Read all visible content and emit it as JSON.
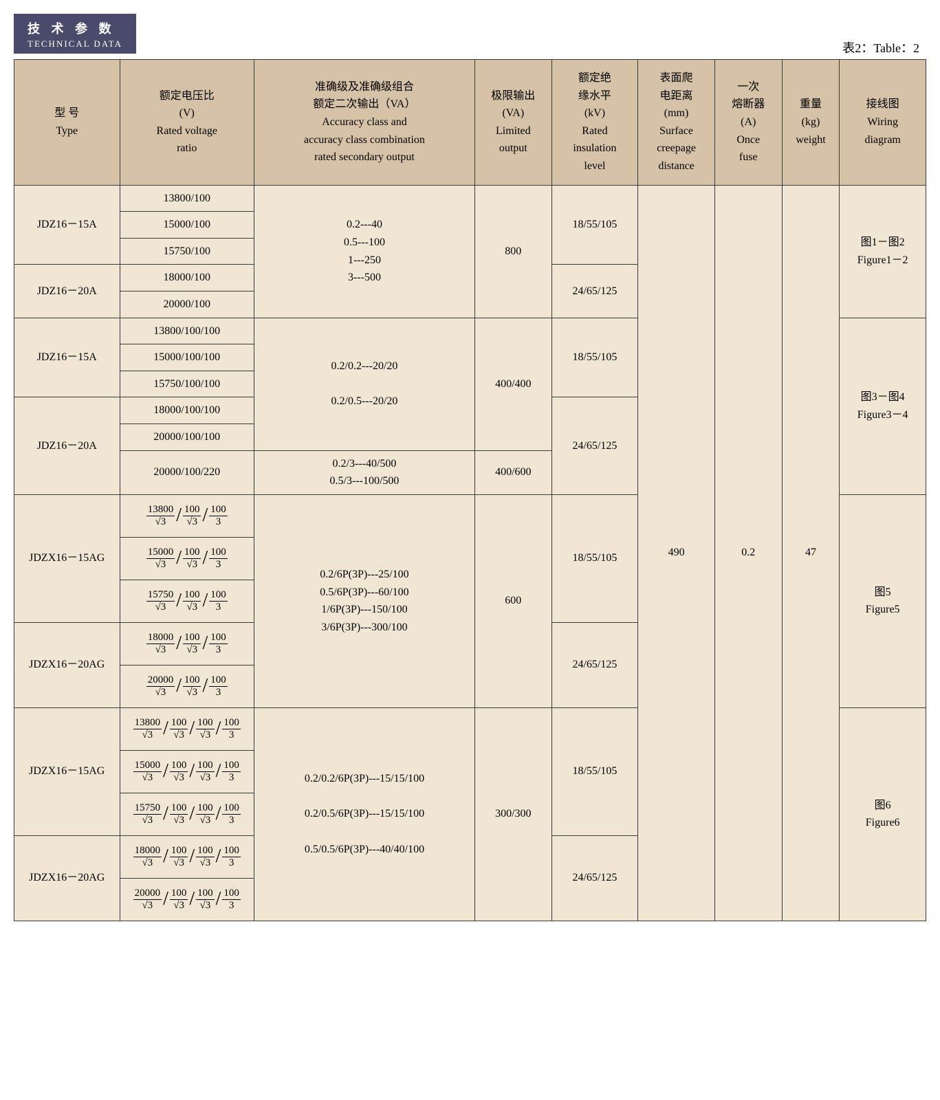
{
  "colors": {
    "badge_bg": "#4a4a6a",
    "badge_fg": "#ffffff",
    "header_bg": "#d6c2a6",
    "cell_bg": "#f1e6d3",
    "border": "#3a3a3a",
    "text": "#000000"
  },
  "page": {
    "badge_cn": "技 术 参 数",
    "badge_en": "TECHNICAL DATA",
    "caption": "表2：Table：2"
  },
  "headers": {
    "type": "型  号\nType",
    "ratio": "额定电压比\n(V)\nRated voltage\nratio",
    "accuracy": "准确级及准确级组合\n额定二次输出（VA）\nAccuracy class and\naccuracy class combination\nrated secondary output",
    "limout": "极限输出\n(VA)\nLimited\noutput",
    "insul": "额定绝\n缘水平\n(kV)\nRated\ninsulation\nlevel",
    "creep": "表面爬\n电距离\n(mm)\nSurface\ncreepage\ndistance",
    "fuse": "一次\n熔断器\n(A)\nOnce\nfuse",
    "weight": "重量\n(kg)\nweight",
    "wiring": "接线图\nWiring\ndiagram"
  },
  "shared": {
    "creepage": "490",
    "fuse": "0.2",
    "weight": "47"
  },
  "groups": [
    {
      "accuracy": "0.2---40\n0.5---100\n1---250\n3---500",
      "limout": "800",
      "wiring": "图1－图2\nFigure1－2",
      "blocks": [
        {
          "type": "JDZ16－15A",
          "insul": "18/55/105",
          "ratios": [
            "13800/100",
            "15000/100",
            "15750/100"
          ]
        },
        {
          "type": "JDZ16－20A",
          "insul": "24/65/125",
          "ratios": [
            "18000/100",
            "20000/100"
          ]
        }
      ]
    },
    {
      "accuracy": "0.2/0.2---20/20\n\n0.2/0.5---20/20",
      "limout": "400/400",
      "wiring": "图3－图4\nFigure3－4",
      "wiring_rows": 6,
      "blocks": [
        {
          "type": "JDZ16－15A",
          "insul": "18/55/105",
          "ratios": [
            "13800/100/100",
            "15000/100/100",
            "15750/100/100"
          ]
        },
        {
          "type": "JDZ16－20A",
          "insul": "24/65/125",
          "insul_rows": 3,
          "ratios": [
            "18000/100/100",
            "20000/100/100"
          ]
        }
      ],
      "extra_row": {
        "ratio": "20000/100/220",
        "accuracy": "0.2/3---40/500\n0.5/3---100/500",
        "limout": "400/600"
      }
    },
    {
      "accuracy": "0.2/6P(3P)---25/100\n0.5/6P(3P)---60/100\n1/6P(3P)---150/100\n3/6P(3P)---300/100",
      "limout": "600",
      "wiring": "图5\nFigure5",
      "fraction3": true,
      "blocks": [
        {
          "type": "JDZX16－15AG",
          "insul": "18/55/105",
          "ratios": [
            [
              "13800"
            ],
            [
              "15000"
            ],
            [
              "15750"
            ]
          ]
        },
        {
          "type": "JDZX16－20AG",
          "insul": "24/65/125",
          "ratios": [
            [
              "18000"
            ],
            [
              "20000"
            ]
          ]
        }
      ]
    },
    {
      "accuracy": "0.2/0.2/6P(3P)---15/15/100\n\n0.2/0.5/6P(3P)---15/15/100\n\n0.5/0.5/6P(3P)---40/40/100",
      "limout": "300/300",
      "wiring": "图6\nFigure6",
      "fraction4": true,
      "blocks": [
        {
          "type": "JDZX16－15AG",
          "insul": "18/55/105",
          "ratios": [
            [
              "13800"
            ],
            [
              "15000"
            ],
            [
              "15750"
            ]
          ]
        },
        {
          "type": "JDZX16－20AG",
          "insul": "24/65/125",
          "ratios": [
            [
              "18000"
            ],
            [
              "20000"
            ]
          ]
        }
      ]
    }
  ]
}
